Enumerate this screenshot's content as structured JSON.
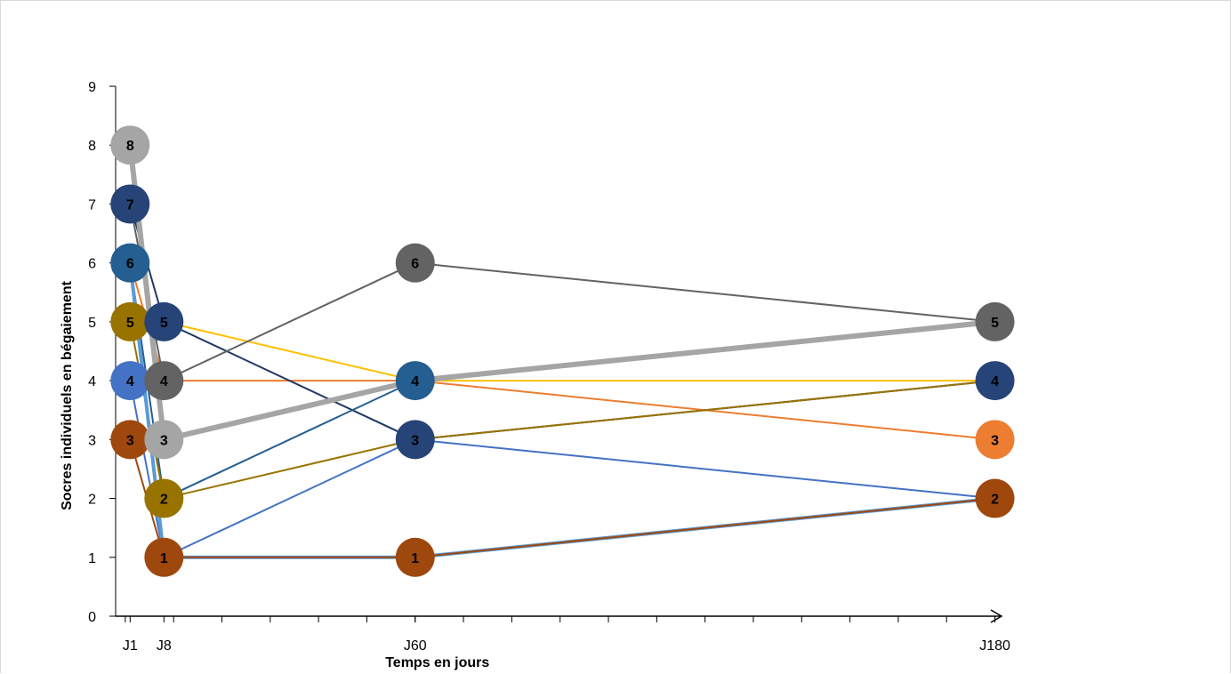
{
  "chart_data": {
    "type": "line",
    "title": "",
    "xlabel": "Temps en jours",
    "ylabel": "Socres individuels en bégaiement",
    "xlim": [
      -2,
      181
    ],
    "ylim": [
      0,
      9
    ],
    "x_ticks": [
      {
        "value": 1,
        "label": "J1"
      },
      {
        "value": 8,
        "label": "J8"
      },
      {
        "value": 60,
        "label": "J60"
      },
      {
        "value": 180,
        "label": "J180"
      }
    ],
    "y_ticks": [
      0,
      1,
      2,
      3,
      4,
      5,
      6,
      7,
      8,
      9
    ],
    "x": [
      1,
      8,
      60,
      180
    ],
    "grid": false,
    "legend": "none",
    "series": [
      {
        "color": "#ffc000",
        "values": [
          5,
          5,
          4,
          4
        ],
        "width": 2
      },
      {
        "color": "#ed7d31",
        "values": [
          6,
          4,
          4,
          3
        ],
        "width": 2
      },
      {
        "color": "#1f3864",
        "values": [
          7,
          5,
          3,
          4
        ],
        "width": 2
      },
      {
        "color": "#4472c4",
        "values": [
          4,
          1,
          3,
          2
        ],
        "width": 2
      },
      {
        "color": "#70ad47",
        "values": [
          6,
          1,
          1,
          2
        ],
        "width": 2
      },
      {
        "color": "#255e91",
        "values": [
          6,
          2,
          4,
          5
        ],
        "width": 2
      },
      {
        "color": "#636363",
        "values": [
          7,
          4,
          6,
          5
        ],
        "width": 2
      },
      {
        "color": "#997300",
        "values": [
          5,
          2,
          3,
          4
        ],
        "width": 2
      },
      {
        "color": "#5b9bd5",
        "values": [
          6,
          1,
          1,
          2
        ],
        "width": 4
      },
      {
        "color": "#9e480e",
        "values": [
          3,
          1,
          1,
          2
        ],
        "width": 2
      },
      {
        "color": "#a5a5a5",
        "values": [
          8,
          3,
          4,
          5
        ],
        "width": 6
      }
    ],
    "markers": [
      {
        "x": 1,
        "y": 8,
        "label": "8",
        "color": "#a5a5a5"
      },
      {
        "x": 1,
        "y": 7,
        "label": "7",
        "color": "#264478"
      },
      {
        "x": 1,
        "y": 6,
        "label": "6",
        "color": "#255e91"
      },
      {
        "x": 1,
        "y": 5,
        "label": "5",
        "color": "#997300"
      },
      {
        "x": 1,
        "y": 4,
        "label": "4",
        "color": "#4472c4"
      },
      {
        "x": 1,
        "y": 3,
        "label": "3",
        "color": "#9e480e"
      },
      {
        "x": 8,
        "y": 5,
        "label": "5",
        "color": "#264478"
      },
      {
        "x": 8,
        "y": 4,
        "label": "4",
        "color": "#636363"
      },
      {
        "x": 8,
        "y": 3,
        "label": "3",
        "color": "#a5a5a5"
      },
      {
        "x": 8,
        "y": 2,
        "label": "2",
        "color": "#997300"
      },
      {
        "x": 8,
        "y": 1,
        "label": "1",
        "color": "#9e480e"
      },
      {
        "x": 60,
        "y": 6,
        "label": "6",
        "color": "#636363"
      },
      {
        "x": 60,
        "y": 4,
        "label": "4",
        "color": "#255e91"
      },
      {
        "x": 60,
        "y": 3,
        "label": "3",
        "color": "#264478"
      },
      {
        "x": 60,
        "y": 1,
        "label": "1",
        "color": "#9e480e"
      },
      {
        "x": 180,
        "y": 5,
        "label": "5",
        "color": "#636363"
      },
      {
        "x": 180,
        "y": 4,
        "label": "4",
        "color": "#264478"
      },
      {
        "x": 180,
        "y": 3,
        "label": "3",
        "color": "#ed7d31"
      },
      {
        "x": 180,
        "y": 2,
        "label": "2",
        "color": "#9e480e"
      }
    ]
  }
}
